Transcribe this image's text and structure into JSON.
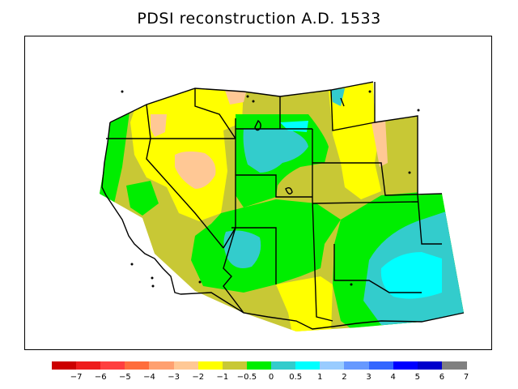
{
  "title": "PDSI reconstruction A.D. 1533",
  "legend": {
    "colors": [
      "#cc0000",
      "#ee1c1c",
      "#ff3f3f",
      "#ff6d3c",
      "#ffa070",
      "#ffc895",
      "#ffff00",
      "#c8c835",
      "#00ee00",
      "#33cccc",
      "#00ffff",
      "#99ccff",
      "#6699ff",
      "#3366ff",
      "#0000ff",
      "#0000cc",
      "#808080"
    ],
    "labels": [
      "−7",
      "−6",
      "−5",
      "−4",
      "−3",
      "−2",
      "−1",
      "−0.5",
      "0",
      "0.5",
      "1",
      "2",
      "3",
      "4",
      "5",
      "6",
      "7"
    ]
  }
}
